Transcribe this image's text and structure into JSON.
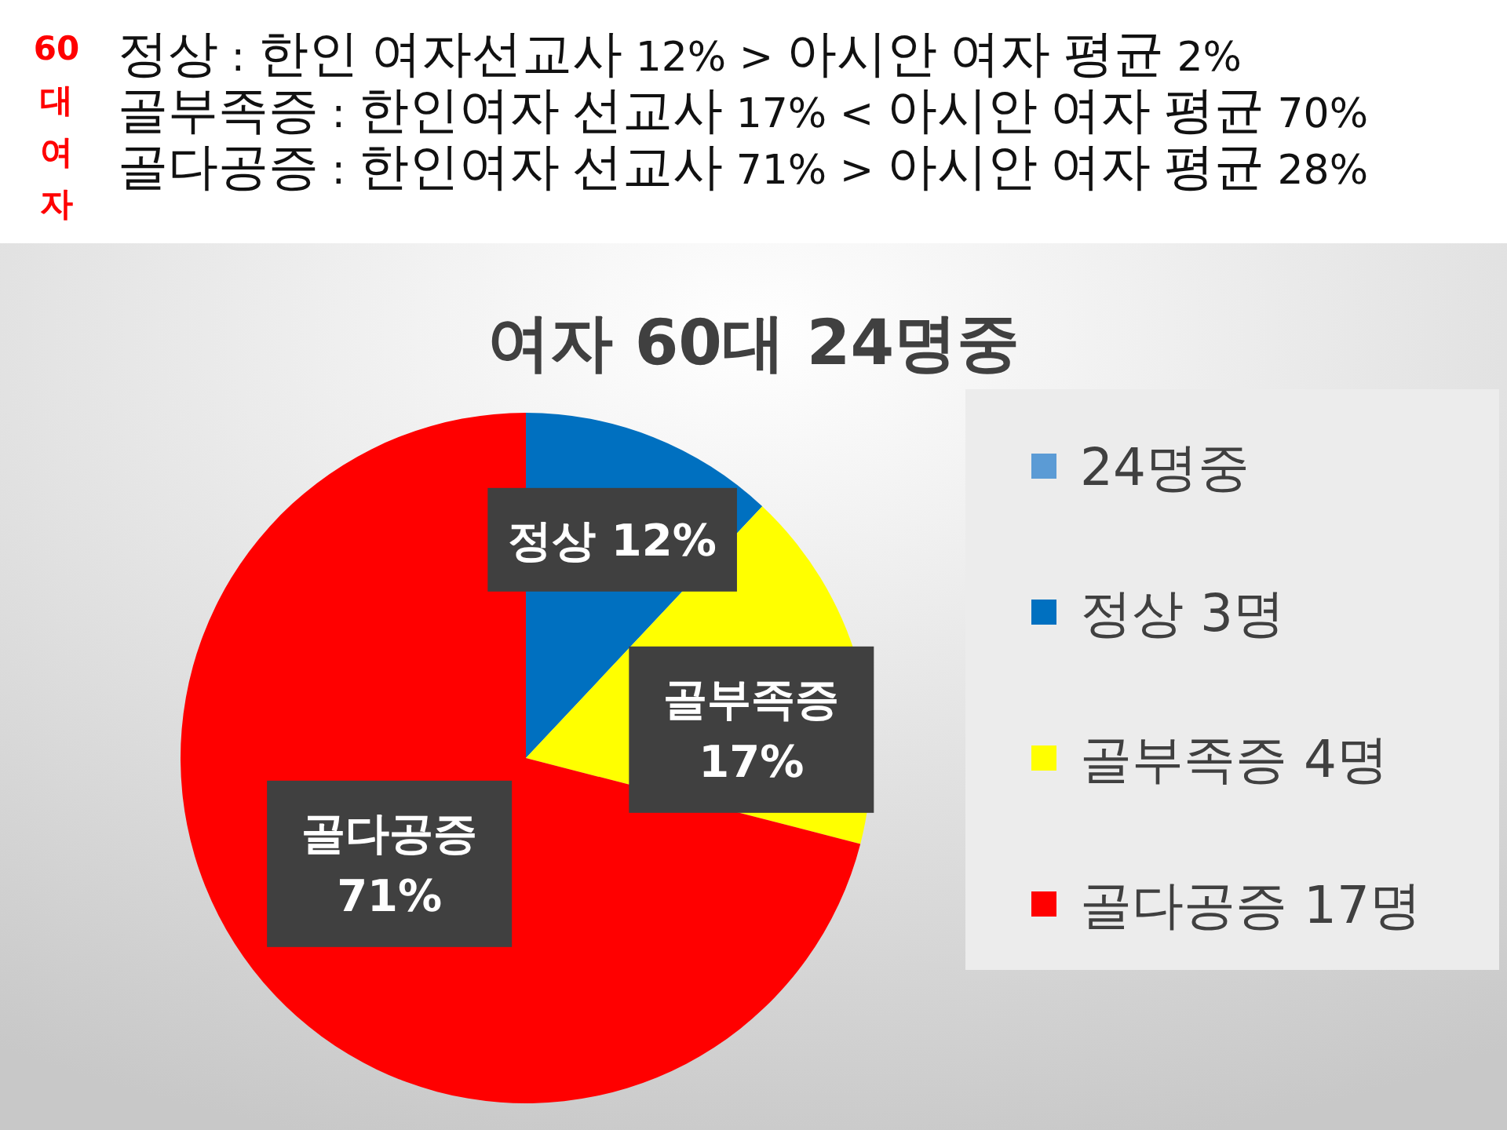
{
  "chart_data": {
    "type": "pie",
    "title": "여자 60대 24명중",
    "annotations": [
      "60대여자",
      "정상 : 한인 여자선교사 12% > 아시안 여자 평균 2%",
      "골부족증 : 한인여자 선교사 17% < 아시안 여자 평균 70%",
      "골다공증 : 한인여자 선교사 71% > 아시안 여자 평균 28%"
    ],
    "categories": [
      "24명중",
      "정상 3명",
      "골부족증 4명",
      "골다공증 17명"
    ],
    "values": [
      0,
      12,
      17,
      71
    ],
    "colors": [
      "#5b9bd5",
      "#0070c0",
      "#ffff00",
      "#ff0000"
    ],
    "value_labels": [
      null,
      "정상 12%",
      "골부족증\n17%",
      "골다공증\n71%"
    ],
    "legend": "right"
  }
}
